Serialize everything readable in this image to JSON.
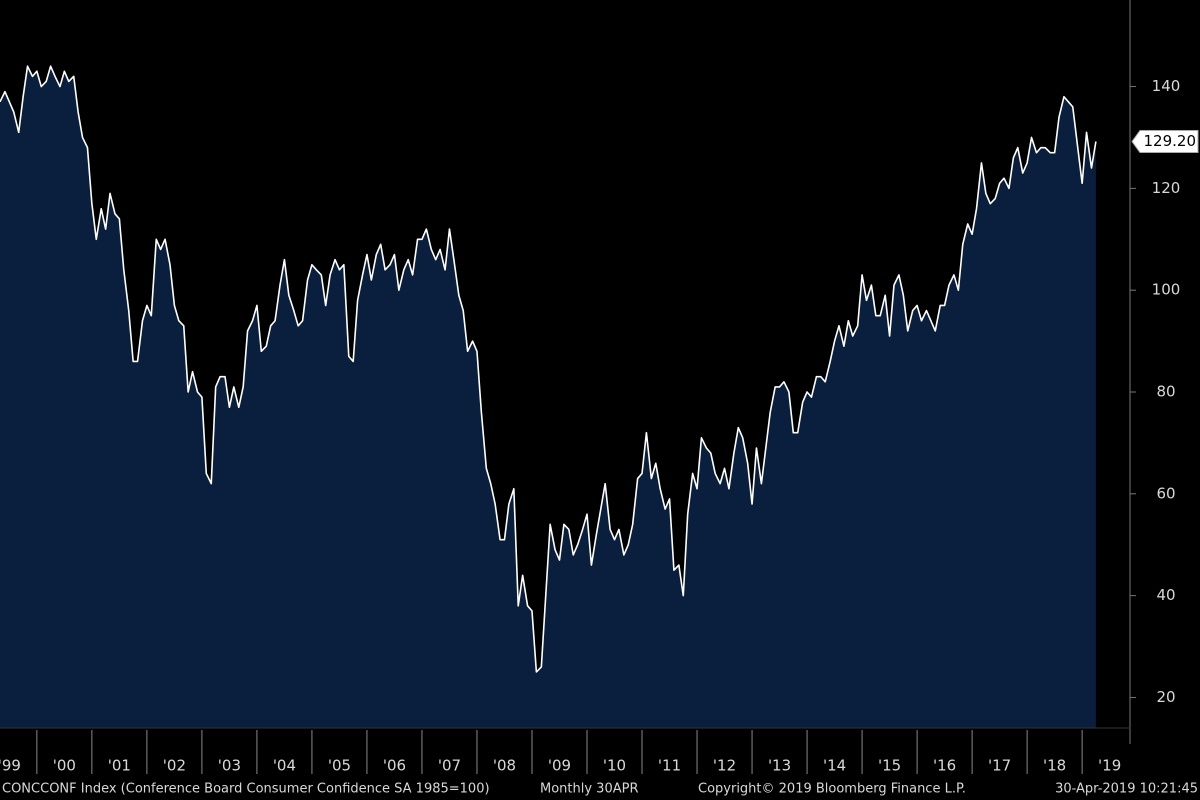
{
  "chart_data": {
    "type": "area",
    "title": "CONCCONF Index (Conference Board Consumer Confidence SA 1985=100)",
    "frequency": "Monthly 30APR",
    "copyright": "Copyright© 2019 Bloomberg Finance L.P.",
    "timestamp": "30-Apr-2019 10:21:45",
    "color": "#ffffff",
    "fill_color": "#0a1f3d",
    "xlim": [
      1999.33,
      2019.87
    ],
    "ylim": [
      14,
      157
    ],
    "yticks": [
      20,
      40,
      60,
      80,
      100,
      120,
      140
    ],
    "xticks": [
      {
        "value": 1999,
        "label": "'99"
      },
      {
        "value": 2000,
        "label": "'00"
      },
      {
        "value": 2001,
        "label": "'01"
      },
      {
        "value": 2002,
        "label": "'02"
      },
      {
        "value": 2003,
        "label": "'03"
      },
      {
        "value": 2004,
        "label": "'04"
      },
      {
        "value": 2005,
        "label": "'05"
      },
      {
        "value": 2006,
        "label": "'06"
      },
      {
        "value": 2007,
        "label": "'07"
      },
      {
        "value": 2008,
        "label": "'08"
      },
      {
        "value": 2009,
        "label": "'09"
      },
      {
        "value": 2010,
        "label": "'10"
      },
      {
        "value": 2011,
        "label": "'11"
      },
      {
        "value": 2012,
        "label": "'12"
      },
      {
        "value": 2013,
        "label": "'13"
      },
      {
        "value": 2014,
        "label": "'14"
      },
      {
        "value": 2015,
        "label": "'15"
      },
      {
        "value": 2016,
        "label": "'16"
      },
      {
        "value": 2017,
        "label": "'17"
      },
      {
        "value": 2018,
        "label": "'18"
      },
      {
        "value": 2019,
        "label": "'19"
      }
    ],
    "last_label": {
      "value": 129.2,
      "label": "129.20"
    },
    "x": [
      1999.33,
      1999.42,
      1999.5,
      1999.58,
      1999.67,
      1999.75,
      1999.83,
      1999.92,
      2000,
      2000.08,
      2000.17,
      2000.25,
      2000.33,
      2000.42,
      2000.5,
      2000.58,
      2000.67,
      2000.75,
      2000.83,
      2000.92,
      2001,
      2001.08,
      2001.17,
      2001.25,
      2001.33,
      2001.42,
      2001.5,
      2001.58,
      2001.67,
      2001.75,
      2001.83,
      2001.92,
      2002,
      2002.08,
      2002.17,
      2002.25,
      2002.33,
      2002.42,
      2002.5,
      2002.58,
      2002.67,
      2002.75,
      2002.83,
      2002.92,
      2003,
      2003.08,
      2003.17,
      2003.25,
      2003.33,
      2003.42,
      2003.5,
      2003.58,
      2003.67,
      2003.75,
      2003.83,
      2003.92,
      2004,
      2004.08,
      2004.17,
      2004.25,
      2004.33,
      2004.42,
      2004.5,
      2004.58,
      2004.67,
      2004.75,
      2004.83,
      2004.92,
      2005,
      2005.08,
      2005.17,
      2005.25,
      2005.33,
      2005.42,
      2005.5,
      2005.58,
      2005.67,
      2005.75,
      2005.83,
      2005.92,
      2006,
      2006.08,
      2006.17,
      2006.25,
      2006.33,
      2006.42,
      2006.5,
      2006.58,
      2006.67,
      2006.75,
      2006.83,
      2006.92,
      2007,
      2007.08,
      2007.17,
      2007.25,
      2007.33,
      2007.42,
      2007.5,
      2007.58,
      2007.67,
      2007.75,
      2007.83,
      2007.92,
      2008,
      2008.08,
      2008.17,
      2008.25,
      2008.33,
      2008.42,
      2008.5,
      2008.58,
      2008.67,
      2008.75,
      2008.83,
      2008.92,
      2009,
      2009.08,
      2009.17,
      2009.25,
      2009.33,
      2009.42,
      2009.5,
      2009.58,
      2009.67,
      2009.75,
      2009.83,
      2009.92,
      2010,
      2010.08,
      2010.17,
      2010.25,
      2010.33,
      2010.42,
      2010.5,
      2010.58,
      2010.67,
      2010.75,
      2010.83,
      2010.92,
      2011,
      2011.08,
      2011.17,
      2011.25,
      2011.33,
      2011.42,
      2011.5,
      2011.58,
      2011.67,
      2011.75,
      2011.83,
      2011.92,
      2012,
      2012.08,
      2012.17,
      2012.25,
      2012.33,
      2012.42,
      2012.5,
      2012.58,
      2012.67,
      2012.75,
      2012.83,
      2012.92,
      2013,
      2013.08,
      2013.17,
      2013.25,
      2013.33,
      2013.42,
      2013.5,
      2013.58,
      2013.67,
      2013.75,
      2013.83,
      2013.92,
      2014,
      2014.08,
      2014.17,
      2014.25,
      2014.33,
      2014.42,
      2014.5,
      2014.58,
      2014.67,
      2014.75,
      2014.83,
      2014.92,
      2015,
      2015.08,
      2015.17,
      2015.25,
      2015.33,
      2015.42,
      2015.5,
      2015.58,
      2015.67,
      2015.75,
      2015.83,
      2015.92,
      2016,
      2016.08,
      2016.17,
      2016.25,
      2016.33,
      2016.42,
      2016.5,
      2016.58,
      2016.67,
      2016.75,
      2016.83,
      2016.92,
      2017,
      2017.08,
      2017.17,
      2017.25,
      2017.33,
      2017.42,
      2017.5,
      2017.58,
      2017.67,
      2017.75,
      2017.83,
      2017.92,
      2018,
      2018.08,
      2018.17,
      2018.25,
      2018.33,
      2018.42,
      2018.5,
      2018.58,
      2018.67,
      2018.75,
      2018.83,
      2018.92,
      2019,
      2019.08,
      2019.17,
      2019.25
    ],
    "values": [
      137,
      139,
      137,
      135,
      131,
      138,
      144,
      142,
      143,
      140,
      141,
      144,
      142,
      140,
      143,
      141,
      142,
      135,
      130,
      128,
      117,
      110,
      116,
      112,
      119,
      115,
      114,
      104,
      96,
      86,
      86,
      94,
      97,
      95,
      110,
      108,
      110,
      105,
      97,
      94,
      93,
      80,
      84,
      80,
      79,
      64,
      62,
      81,
      83,
      83,
      77,
      81,
      77,
      81,
      92,
      94,
      97,
      88,
      89,
      93,
      94,
      101,
      106,
      99,
      96,
      93,
      94,
      102,
      105,
      104,
      103,
      97,
      103,
      106,
      104,
      105,
      87,
      86,
      98,
      103,
      107,
      102,
      107,
      109,
      104,
      105,
      107,
      100,
      104,
      106,
      103,
      110,
      110,
      112,
      108,
      106,
      108,
      104,
      112,
      106,
      99,
      96,
      88,
      90,
      88,
      76,
      65,
      62,
      58,
      51,
      51,
      58,
      61,
      38,
      44,
      38,
      37,
      25,
      26,
      40,
      54,
      49,
      47,
      54,
      53,
      48,
      50,
      53,
      56,
      46,
      52,
      57,
      62,
      53,
      51,
      53,
      48,
      50,
      54,
      63,
      64,
      72,
      63,
      66,
      61,
      57,
      59,
      45,
      46,
      40,
      56,
      64,
      61,
      71,
      69,
      68,
      64,
      62,
      65,
      61,
      68,
      73,
      71,
      66,
      58,
      69,
      62,
      69,
      76,
      81,
      81,
      82,
      80,
      72,
      72,
      78,
      80,
      79,
      83,
      83,
      82,
      86,
      90,
      93,
      89,
      94,
      91,
      93,
      103,
      98,
      101,
      95,
      95,
      99,
      91,
      101,
      103,
      99,
      92,
      96,
      97,
      94,
      96,
      94,
      92,
      97,
      97,
      101,
      103,
      100,
      109,
      113,
      111,
      116,
      125,
      119,
      117,
      118,
      121,
      122,
      120,
      126,
      128,
      123,
      125,
      130,
      127,
      128,
      128,
      127,
      127,
      134,
      138,
      137,
      136,
      128,
      121,
      131,
      124,
      129.2
    ]
  }
}
